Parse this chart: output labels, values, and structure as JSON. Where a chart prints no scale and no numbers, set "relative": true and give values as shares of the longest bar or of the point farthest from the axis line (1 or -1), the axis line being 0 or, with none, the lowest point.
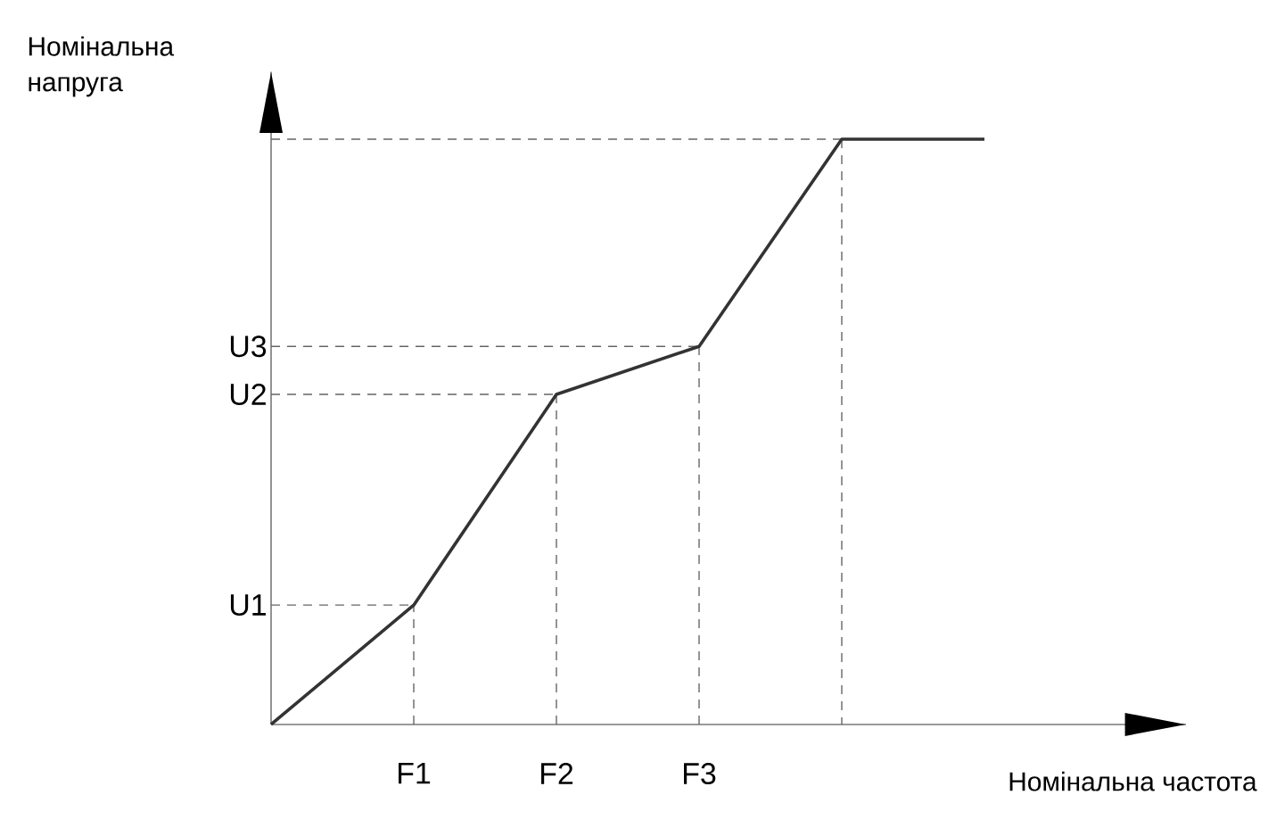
{
  "chart_data": {
    "type": "line",
    "xlabel": "Номінальна частота",
    "ylabel": "Номінальна напруга",
    "relative": true,
    "categories": [
      null,
      "F1",
      "F2",
      "F3",
      null,
      null
    ],
    "values": [
      0,
      0.204,
      0.564,
      0.646,
      1,
      1
    ],
    "color": "#333333",
    "marker": "none",
    "line_style": "solid",
    "ref_lines": [
      {
        "axis": "y",
        "value": 0.204,
        "label": "U1",
        "line_style": "dashed",
        "color": "#666666"
      },
      {
        "axis": "y",
        "value": 0.564,
        "label": "U2",
        "line_style": "dashed",
        "color": "#666666"
      },
      {
        "axis": "y",
        "value": 0.646,
        "label": "U3",
        "line_style": "dashed",
        "color": "#666666"
      },
      {
        "axis": "y",
        "value": 1,
        "line_style": "dashed",
        "color": "#666666"
      },
      {
        "axis": "x",
        "value": "F1",
        "line_style": "dashed",
        "color": "#666666"
      },
      {
        "axis": "x",
        "value": "F2",
        "line_style": "dashed",
        "color": "#666666"
      },
      {
        "axis": "x",
        "value": "F3",
        "line_style": "dashed",
        "color": "#666666"
      }
    ]
  }
}
